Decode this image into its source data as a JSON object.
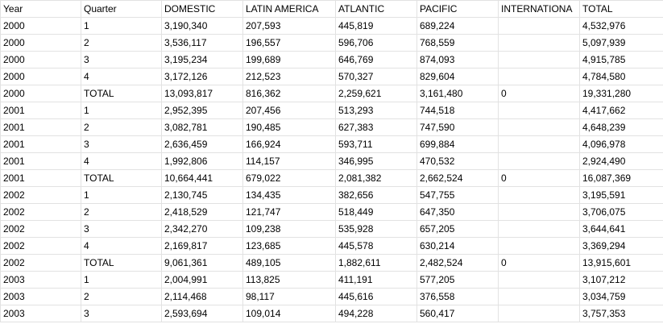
{
  "sheet": {
    "headers": [
      "Year",
      "Quarter",
      "DOMESTIC",
      "LATIN AMERICA",
      "ATLANTIC",
      "PACIFIC",
      "INTERNATIONA",
      "TOTAL"
    ],
    "rows": [
      [
        "2000",
        "1",
        "3,190,340",
        "207,593",
        "445,819",
        "689,224",
        "",
        "4,532,976"
      ],
      [
        "2000",
        "2",
        "3,536,117",
        "196,557",
        "596,706",
        "768,559",
        "",
        "5,097,939"
      ],
      [
        "2000",
        "3",
        "3,195,234",
        "199,689",
        "646,769",
        "874,093",
        "",
        "4,915,785"
      ],
      [
        "2000",
        "4",
        "3,172,126",
        "212,523",
        "570,327",
        "829,604",
        "",
        "4,784,580"
      ],
      [
        "2000",
        "TOTAL",
        "13,093,817",
        "816,362",
        "2,259,621",
        "3,161,480",
        "0",
        "19,331,280"
      ],
      [
        "2001",
        "1",
        "2,952,395",
        "207,456",
        "513,293",
        "744,518",
        "",
        "4,417,662"
      ],
      [
        "2001",
        "2",
        "3,082,781",
        "190,485",
        "627,383",
        "747,590",
        "",
        "4,648,239"
      ],
      [
        "2001",
        "3",
        "2,636,459",
        "166,924",
        "593,711",
        "699,884",
        "",
        "4,096,978"
      ],
      [
        "2001",
        "4",
        "1,992,806",
        "114,157",
        "346,995",
        "470,532",
        "",
        "2,924,490"
      ],
      [
        "2001",
        "TOTAL",
        "10,664,441",
        "679,022",
        "2,081,382",
        "2,662,524",
        "0",
        "16,087,369"
      ],
      [
        "2002",
        "1",
        "2,130,745",
        "134,435",
        "382,656",
        "547,755",
        "",
        "3,195,591"
      ],
      [
        "2002",
        "2",
        "2,418,529",
        "121,747",
        "518,449",
        "647,350",
        "",
        "3,706,075"
      ],
      [
        "2002",
        "3",
        "2,342,270",
        "109,238",
        "535,928",
        "657,205",
        "",
        "3,644,641"
      ],
      [
        "2002",
        "4",
        "2,169,817",
        "123,685",
        "445,578",
        "630,214",
        "",
        "3,369,294"
      ],
      [
        "2002",
        "TOTAL",
        "9,061,361",
        "489,105",
        "1,882,611",
        "2,482,524",
        "0",
        "13,915,601"
      ],
      [
        "2003",
        "1",
        "2,004,991",
        "113,825",
        "411,191",
        "577,205",
        "",
        "3,107,212"
      ],
      [
        "2003",
        "2",
        "2,114,468",
        "98,117",
        "445,616",
        "376,558",
        "",
        "3,034,759"
      ],
      [
        "2003",
        "3",
        "2,593,694",
        "109,014",
        "494,228",
        "560,417",
        "",
        "3,757,353"
      ]
    ]
  }
}
